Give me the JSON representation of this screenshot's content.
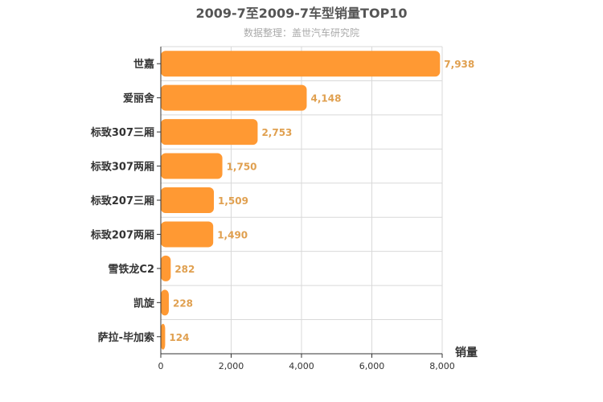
{
  "chart_data": {
    "type": "bar",
    "orientation": "horizontal",
    "title": "2009-7至2009-7车型销量TOP10",
    "subtitle": "数据整理：盖世汽车研究院",
    "xlabel": "销量",
    "ylabel": "",
    "categories": [
      "世嘉",
      "爱丽舍",
      "标致307三厢",
      "标致307两厢",
      "标致207三厢",
      "标致207两厢",
      "雪铁龙C2",
      "凯旋",
      "萨拉-毕加索"
    ],
    "values": [
      7938,
      4148,
      2753,
      1750,
      1509,
      1490,
      282,
      228,
      124
    ],
    "value_labels": [
      "7,938",
      "4,148",
      "2,753",
      "1,750",
      "1,509",
      "1,490",
      "282",
      "228",
      "124"
    ],
    "xlim": [
      0,
      8000
    ],
    "xticks": [
      0,
      2000,
      4000,
      6000,
      8000
    ],
    "xtick_labels": [
      "0",
      "2,000",
      "4,000",
      "6,000",
      "8,000"
    ],
    "grid": true,
    "colors": {
      "bar": "#ff9933",
      "value_label": "#e0a050",
      "grid": "#d9d9d9",
      "axis": "#333333"
    }
  }
}
